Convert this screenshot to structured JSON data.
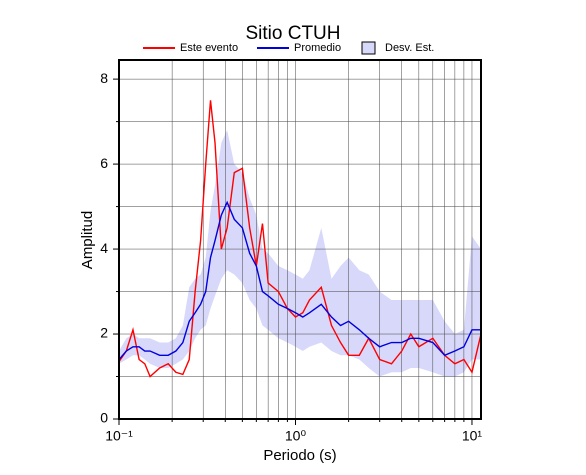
{
  "chart_data": {
    "type": "line",
    "title": "Sitio CTUH",
    "xlabel": "Periodo (s)",
    "ylabel": "Amplitud",
    "xscale": "log",
    "grid": true,
    "xlim": [
      0.1,
      11.25
    ],
    "ylim": [
      0,
      8.45
    ],
    "xticks": [
      {
        "value": 0.1,
        "label": "10⁻¹"
      },
      {
        "value": 1,
        "label": "10⁰"
      },
      {
        "value": 10,
        "label": "10¹"
      }
    ],
    "xminor": [
      0.2,
      0.3,
      0.4,
      0.5,
      0.6,
      0.7,
      0.8,
      0.9,
      2,
      3,
      4,
      5,
      6,
      7,
      8,
      9
    ],
    "yticks": [
      0,
      2,
      4,
      6,
      8
    ],
    "yminor": [
      1,
      3,
      5,
      7
    ],
    "x": [
      0.1,
      0.11,
      0.12,
      0.13,
      0.14,
      0.15,
      0.17,
      0.19,
      0.21,
      0.23,
      0.25,
      0.27,
      0.29,
      0.31,
      0.33,
      0.35,
      0.38,
      0.41,
      0.45,
      0.5,
      0.55,
      0.6,
      0.65,
      0.7,
      0.8,
      0.9,
      1.0,
      1.1,
      1.2,
      1.4,
      1.6,
      1.8,
      2.0,
      2.3,
      2.6,
      3.0,
      3.5,
      4,
      4.5,
      5,
      6,
      7,
      8,
      9,
      10,
      11.25
    ],
    "band": {
      "name": "Desv. Est.",
      "color": "#d8d8fa",
      "lower": [
        1.3,
        1.4,
        1.5,
        1.5,
        1.4,
        1.3,
        1.2,
        1.2,
        1.3,
        1.4,
        1.6,
        1.9,
        2.1,
        2.2,
        2.6,
        2.9,
        3.3,
        3.5,
        3.4,
        3.2,
        2.8,
        2.6,
        2.2,
        2.1,
        1.9,
        1.8,
        1.7,
        1.6,
        1.7,
        1.8,
        1.6,
        1.5,
        1.5,
        1.4,
        1.2,
        1.0,
        1.1,
        1.1,
        1.2,
        1.2,
        1.1,
        1.0,
        1.0,
        1.1,
        1.4,
        1.4
      ],
      "upper": [
        1.6,
        1.9,
        2.0,
        1.9,
        1.9,
        1.9,
        1.8,
        1.8,
        1.9,
        2.2,
        3.1,
        3.3,
        3.4,
        3.8,
        4.9,
        5.5,
        6.5,
        6.8,
        6.0,
        5.8,
        5.2,
        4.8,
        4.0,
        3.9,
        3.6,
        3.5,
        3.4,
        3.3,
        3.5,
        4.5,
        3.3,
        3.6,
        3.8,
        3.5,
        3.4,
        3.0,
        2.8,
        2.8,
        2.8,
        2.8,
        2.8,
        2.3,
        2.0,
        2.1,
        4.3,
        4.0
      ]
    },
    "series": [
      {
        "name": "Este evento",
        "color": "#ff0000",
        "values": [
          1.35,
          1.6,
          2.1,
          1.4,
          1.3,
          1.0,
          1.2,
          1.3,
          1.1,
          1.05,
          1.4,
          3.0,
          4.2,
          6.0,
          7.5,
          6.5,
          4.0,
          4.5,
          5.8,
          5.9,
          4.5,
          3.6,
          4.6,
          3.2,
          3.0,
          2.6,
          2.4,
          2.5,
          2.8,
          3.1,
          2.2,
          1.8,
          1.5,
          1.5,
          1.9,
          1.4,
          1.3,
          1.6,
          2.0,
          1.7,
          1.9,
          1.5,
          1.3,
          1.4,
          1.1,
          2.0
        ]
      },
      {
        "name": "Promedio",
        "color": "#0000e0",
        "values": [
          1.4,
          1.6,
          1.7,
          1.7,
          1.6,
          1.6,
          1.5,
          1.5,
          1.6,
          1.8,
          2.3,
          2.5,
          2.7,
          3.0,
          3.8,
          4.2,
          4.8,
          5.1,
          4.7,
          4.5,
          3.9,
          3.6,
          3.0,
          2.9,
          2.7,
          2.6,
          2.5,
          2.4,
          2.5,
          2.7,
          2.4,
          2.2,
          2.3,
          2.1,
          1.9,
          1.7,
          1.8,
          1.8,
          1.9,
          1.9,
          1.8,
          1.5,
          1.6,
          1.7,
          2.1,
          2.1
        ]
      }
    ]
  }
}
